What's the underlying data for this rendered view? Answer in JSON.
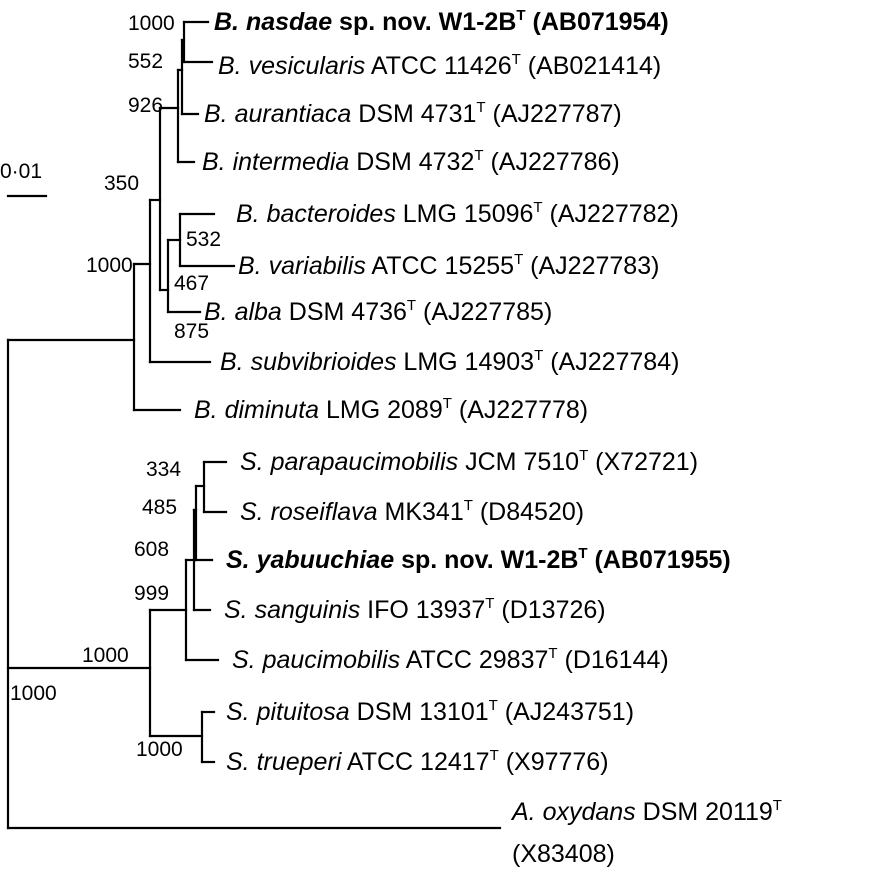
{
  "scale_bar": {
    "label": "0·01"
  },
  "taxa": [
    {
      "genus": "B. nasdae",
      "rest": " sp. nov. W1-2B",
      "sup": "T",
      "acc": " (AB071954)",
      "bold": true
    },
    {
      "genus": "B. vesicularis",
      "rest": " ATCC 11426",
      "sup": "T",
      "acc": " (AB021414)",
      "bold": false
    },
    {
      "genus": "B. aurantiaca",
      "rest": " DSM 4731",
      "sup": "T",
      "acc": " (AJ227787)",
      "bold": false
    },
    {
      "genus": "B. intermedia",
      "rest": " DSM 4732",
      "sup": "T",
      "acc": " (AJ227786)",
      "bold": false
    },
    {
      "genus": "B. bacteroides",
      "rest": " LMG 15096",
      "sup": "T",
      "acc": " (AJ227782)",
      "bold": false
    },
    {
      "genus": "B. variabilis",
      "rest": " ATCC 15255",
      "sup": "T",
      "acc": " (AJ227783)",
      "bold": false
    },
    {
      "genus": "B. alba",
      "rest": " DSM 4736",
      "sup": "T",
      "acc": " (AJ227785)",
      "bold": false
    },
    {
      "genus": "B. subvibrioides",
      "rest": " LMG 14903",
      "sup": "T",
      "acc": " (AJ227784)",
      "bold": false
    },
    {
      "genus": "B. diminuta",
      "rest": " LMG 2089",
      "sup": "T",
      "acc": " (AJ227778)",
      "bold": false
    },
    {
      "genus": "S. parapaucimobilis",
      "rest": " JCM 7510",
      "sup": "T",
      "acc": " (X72721)",
      "bold": false
    },
    {
      "genus": "S. roseiflava",
      "rest": " MK341",
      "sup": "T",
      "acc": " (D84520)",
      "bold": false
    },
    {
      "genus": "S. yabuuchiae",
      "rest": " sp. nov. W1-2B",
      "sup": "T",
      "acc": " (AB071955)",
      "bold": true
    },
    {
      "genus": "S. sanguinis",
      "rest": " IFO 13937",
      "sup": "T",
      "acc": " (D13726)",
      "bold": false
    },
    {
      "genus": "S. paucimobilis",
      "rest": " ATCC 29837",
      "sup": "T",
      "acc": " (D16144)",
      "bold": false
    },
    {
      "genus": "S. pituitosa",
      "rest": " DSM 13101",
      "sup": "T",
      "acc": " (AJ243751)",
      "bold": false
    },
    {
      "genus": "S. trueperi",
      "rest": " ATCC 12417",
      "sup": "T",
      "acc": " (X97776)",
      "bold": false
    },
    {
      "genus": "A. oxydans",
      "rest": " DSM 20119",
      "sup": "T",
      "acc": "",
      "acc_line2": "(X83408)",
      "bold": false
    }
  ],
  "bootstrap": [
    "1000",
    "552",
    "926",
    "350",
    "532",
    "467",
    "1000",
    "875",
    "334",
    "485",
    "608",
    "999",
    "1000",
    "1000",
    "1000"
  ]
}
